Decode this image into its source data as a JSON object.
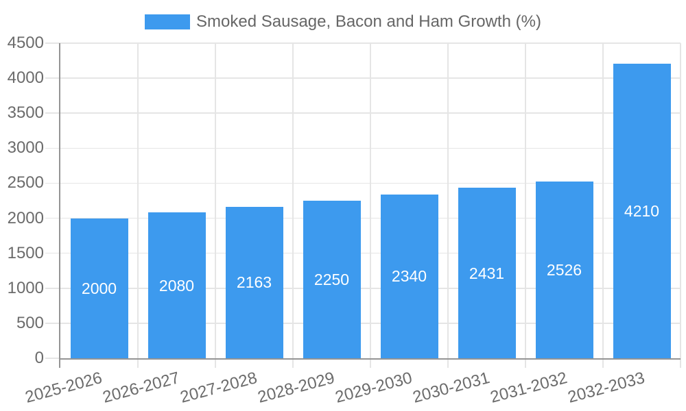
{
  "chart_data": {
    "type": "bar",
    "title": "",
    "legend_label": "Smoked Sausage, Bacon and Ham Growth (%)",
    "legend_position": "top",
    "categories": [
      "2025-2026",
      "2026-2027",
      "2027-2028",
      "2028-2029",
      "2029-2030",
      "2030-2031",
      "2031-2032",
      "2032-2033"
    ],
    "values": [
      2000,
      2080,
      2163,
      2250,
      2340,
      2431,
      2526,
      4210
    ],
    "value_labels": [
      "2000",
      "2080",
      "2163",
      "2250",
      "2340",
      "2431",
      "2526",
      "4210"
    ],
    "xlabel": "",
    "ylabel": "",
    "ylim": [
      0,
      4500
    ],
    "yticks": [
      0,
      500,
      1000,
      1500,
      2000,
      2500,
      3000,
      3500,
      4000,
      4500
    ],
    "grid": true,
    "colors": {
      "bar": "#3D9AEE",
      "bar_value_text": "#ffffff",
      "axis_line": "#949494",
      "gridline": "#e5e5e5",
      "axis_text": "#6b6b6b",
      "legend_text": "#666666",
      "background": "#ffffff"
    }
  }
}
